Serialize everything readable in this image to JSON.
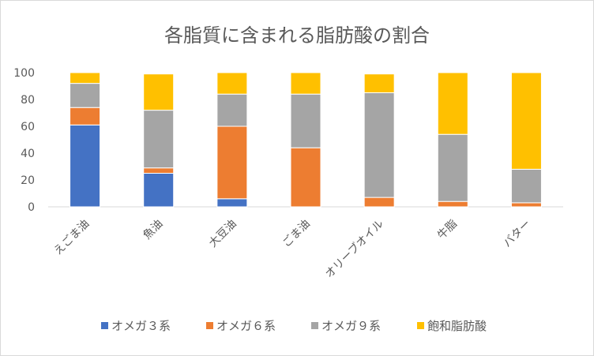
{
  "chart_data": {
    "type": "bar",
    "stacked": true,
    "title": "各脂質に含まれる脂肪酸の割合",
    "xlabel": "",
    "ylabel": "",
    "ylim": [
      0,
      100
    ],
    "yticks": [
      "0",
      "20",
      "40",
      "60",
      "80",
      "100"
    ],
    "grid": false,
    "legend_position": "bottom",
    "categories": [
      "えごま油",
      "魚油",
      "大豆油",
      "ごま油",
      "オリーブオイル",
      "牛脂",
      "バター"
    ],
    "series": [
      {
        "name": "オメガ３系",
        "color": "#4472C4",
        "values": [
          61,
          25,
          6,
          0,
          0,
          0,
          0
        ]
      },
      {
        "name": "オメガ６系",
        "color": "#ED7D31",
        "values": [
          13,
          4,
          54,
          44,
          7,
          4,
          3
        ]
      },
      {
        "name": "オメガ９系",
        "color": "#A5A5A5",
        "values": [
          18,
          43,
          24,
          40,
          78,
          50,
          25
        ]
      },
      {
        "name": "飽和脂肪酸",
        "color": "#FFC000",
        "values": [
          8,
          27,
          16,
          16,
          14,
          46,
          72
        ]
      }
    ]
  }
}
